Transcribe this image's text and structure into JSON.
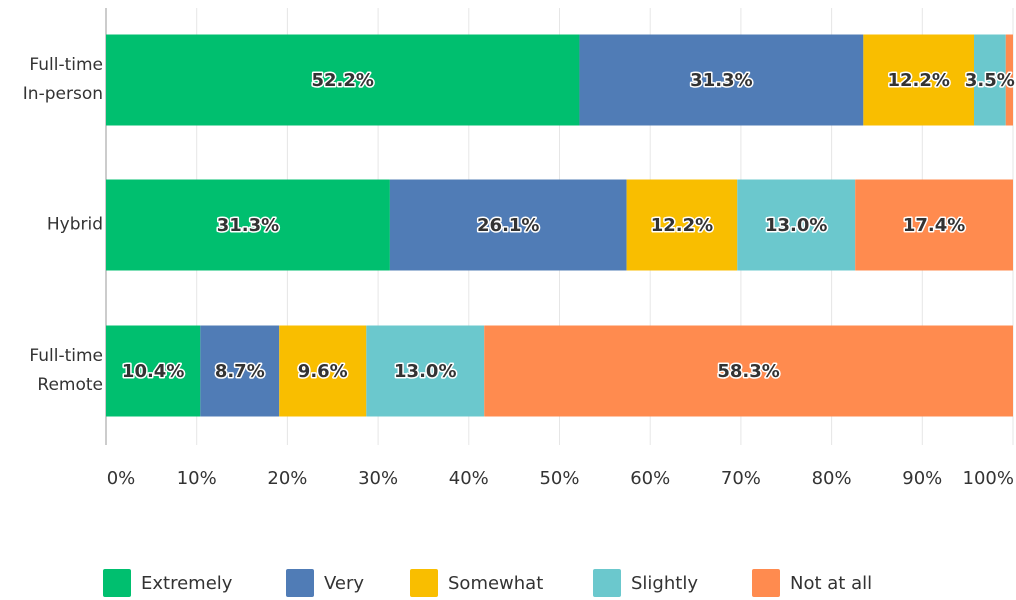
{
  "chart_data": {
    "type": "stacked-bar-horizontal",
    "categories": [
      "Full-time In-person",
      "Hybrid",
      "Full-time Remote"
    ],
    "series": [
      {
        "name": "Extremely",
        "color": "#00bf6f",
        "values": [
          52.2,
          31.3,
          10.4
        ],
        "value_labels": [
          "52.2%",
          "31.3%",
          "10.4%"
        ]
      },
      {
        "name": "Very",
        "color": "#507cb6",
        "values": [
          31.3,
          26.1,
          8.7
        ],
        "value_labels": [
          "31.3%",
          "26.1%",
          "8.7%"
        ]
      },
      {
        "name": "Somewhat",
        "color": "#f9be00",
        "values": [
          12.2,
          12.2,
          9.6
        ],
        "value_labels": [
          "12.2%",
          "12.2%",
          "9.6%"
        ]
      },
      {
        "name": "Slightly",
        "color": "#6bc8cd",
        "values": [
          3.5,
          13.0,
          13.0
        ],
        "value_labels": [
          "3.5%",
          "13.0%",
          "13.0%"
        ]
      },
      {
        "name": "Not at all",
        "color": "#ff8b4f",
        "values": [
          0.8,
          17.4,
          58.3
        ],
        "value_labels": [
          null,
          "17.4%",
          "58.3%"
        ]
      }
    ],
    "xlim": [
      0,
      100
    ],
    "xticks": [
      {
        "value": 0,
        "label": "0%"
      },
      {
        "value": 10,
        "label": "10%"
      },
      {
        "value": 20,
        "label": "20%"
      },
      {
        "value": 30,
        "label": "30%"
      },
      {
        "value": 40,
        "label": "40%"
      },
      {
        "value": 50,
        "label": "50%"
      },
      {
        "value": 60,
        "label": "60%"
      },
      {
        "value": 70,
        "label": "70%"
      },
      {
        "value": 80,
        "label": "80%"
      },
      {
        "value": 90,
        "label": "90%"
      },
      {
        "value": 100,
        "label": "100%"
      }
    ],
    "grid": true,
    "legend": "bottom"
  }
}
